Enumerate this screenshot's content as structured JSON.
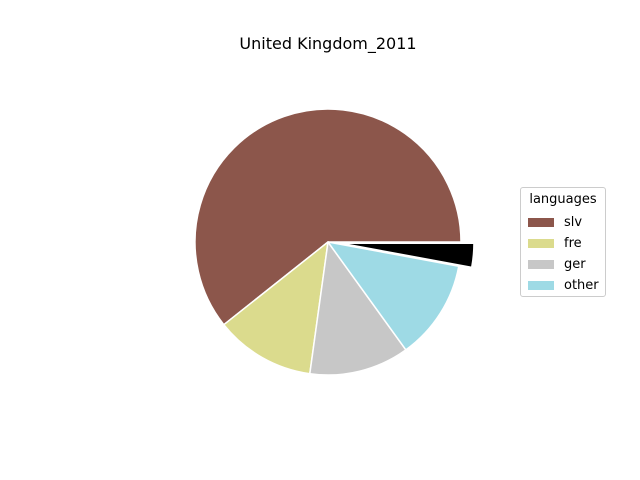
{
  "chart_data": {
    "type": "pie",
    "title": "United Kingdom_2011",
    "legend": {
      "title": "languages",
      "placement": "right"
    },
    "slices": [
      {
        "label": "slv",
        "value": 62.5,
        "color": "#8c564b",
        "exploded": false
      },
      {
        "label": "fre",
        "value": 12.5,
        "color": "#dbdb8d",
        "exploded": false
      },
      {
        "label": "ger",
        "value": 12.5,
        "color": "#c7c7c7",
        "exploded": false
      },
      {
        "label": "other",
        "value": 12.5,
        "color": "#9edae5",
        "exploded": false
      },
      {
        "label": "",
        "value": 3,
        "color": "#000000",
        "exploded": true
      }
    ],
    "start_angle_deg": 0,
    "direction": "counterclockwise",
    "wedge_edge_color": "#ffffff"
  }
}
